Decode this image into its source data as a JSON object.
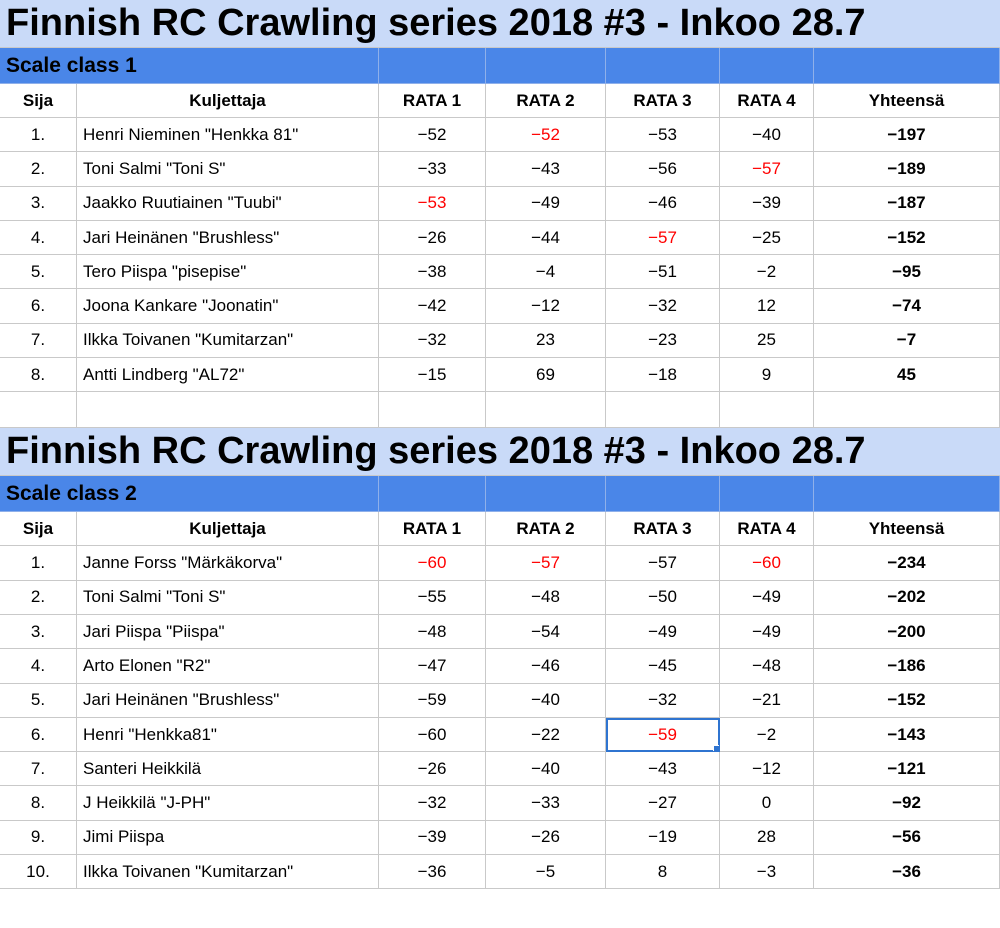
{
  "tables": [
    {
      "title": "Finnish RC Crawling series 2018 #3 - Inkoo 28.7",
      "class_label": "Scale class 1",
      "headers": [
        "Sija",
        "Kuljettaja",
        "RATA 1",
        "RATA 2",
        "RATA 3",
        "RATA 4",
        "Yhteensä"
      ],
      "rows": [
        {
          "pos": "1.",
          "name": "Henri Nieminen \"Henkka 81\"",
          "r1": "−52",
          "r2": "−52",
          "r3": "−53",
          "r4": "−40",
          "total": "−197",
          "red": [
            2
          ]
        },
        {
          "pos": "2.",
          "name": "Toni Salmi \"Toni S\"",
          "r1": "−33",
          "r2": "−43",
          "r3": "−56",
          "r4": "−57",
          "total": "−189",
          "red": [
            4
          ]
        },
        {
          "pos": "3.",
          "name": "Jaakko Ruutiainen \"Tuubi\"",
          "r1": "−53",
          "r2": "−49",
          "r3": "−46",
          "r4": "−39",
          "total": "−187",
          "red": [
            1
          ]
        },
        {
          "pos": "4.",
          "name": "Jari Heinänen \"Brushless\"",
          "r1": "−26",
          "r2": "−44",
          "r3": "−57",
          "r4": "−25",
          "total": "−152",
          "red": [
            3
          ]
        },
        {
          "pos": "5.",
          "name": "Tero Piispa \"pisepise\"",
          "r1": "−38",
          "r2": "−4",
          "r3": "−51",
          "r4": "−2",
          "total": "−95",
          "red": []
        },
        {
          "pos": "6.",
          "name": "Joona Kankare \"Joonatin\"",
          "r1": "−42",
          "r2": "−12",
          "r3": "−32",
          "r4": "12",
          "total": "−74",
          "red": []
        },
        {
          "pos": "7.",
          "name": "Ilkka Toivanen \"Kumitarzan\"",
          "r1": "−32",
          "r2": "23",
          "r3": "−23",
          "r4": "25",
          "total": "−7",
          "red": []
        },
        {
          "pos": "8.",
          "name": "Antti Lindberg \"AL72\"",
          "r1": "−15",
          "r2": "69",
          "r3": "−18",
          "r4": "9",
          "total": "45",
          "red": []
        }
      ]
    },
    {
      "title": "Finnish RC Crawling series 2018 #3 - Inkoo 28.7",
      "class_label": "Scale class 2",
      "headers": [
        "Sija",
        "Kuljettaja",
        "RATA 1",
        "RATA 2",
        "RATA 3",
        "RATA 4",
        "Yhteensä"
      ],
      "rows": [
        {
          "pos": "1.",
          "name": "Janne Forss \"Märkäkorva\"",
          "r1": "−60",
          "r2": "−57",
          "r3": "−57",
          "r4": "−60",
          "total": "−234",
          "red": [
            1,
            2,
            4
          ]
        },
        {
          "pos": "2.",
          "name": "Toni Salmi \"Toni S\"",
          "r1": "−55",
          "r2": "−48",
          "r3": "−50",
          "r4": "−49",
          "total": "−202",
          "red": []
        },
        {
          "pos": "3.",
          "name": "Jari Piispa \"Piispa\"",
          "r1": "−48",
          "r2": "−54",
          "r3": "−49",
          "r4": "−49",
          "total": "−200",
          "red": []
        },
        {
          "pos": "4.",
          "name": "Arto Elonen \"R2\"",
          "r1": "−47",
          "r2": "−46",
          "r3": "−45",
          "r4": "−48",
          "total": "−186",
          "red": []
        },
        {
          "pos": "5.",
          "name": "Jari Heinänen \"Brushless\"",
          "r1": "−59",
          "r2": "−40",
          "r3": "−32",
          "r4": "−21",
          "total": "−152",
          "red": []
        },
        {
          "pos": "6.",
          "name": "Henri \"Henkka81\"",
          "r1": "−60",
          "r2": "−22",
          "r3": "−59",
          "r4": "−2",
          "total": "−143",
          "red": [
            3
          ],
          "selected": 3
        },
        {
          "pos": "7.",
          "name": "Santeri Heikkilä",
          "r1": "−26",
          "r2": "−40",
          "r3": "−43",
          "r4": "−12",
          "total": "−121",
          "red": []
        },
        {
          "pos": "8.",
          "name": "J Heikkilä \"J-PH\"",
          "r1": "−32",
          "r2": "−33",
          "r3": "−27",
          "r4": "0",
          "total": "−92",
          "red": []
        },
        {
          "pos": "9.",
          "name": "Jimi Piispa",
          "r1": "−39",
          "r2": "−26",
          "r3": "−19",
          "r4": "28",
          "total": "−56",
          "red": []
        },
        {
          "pos": "10.",
          "name": "Ilkka Toivanen \"Kumitarzan\"",
          "r1": "−36",
          "r2": "−5",
          "r3": "8",
          "r4": "−3",
          "total": "−36",
          "red": []
        }
      ]
    }
  ],
  "colors": {
    "title_bg": "#c9daf8",
    "class_bg": "#4a86e8",
    "highlight_text": "#ff0000",
    "selection": "#2f74d0"
  }
}
